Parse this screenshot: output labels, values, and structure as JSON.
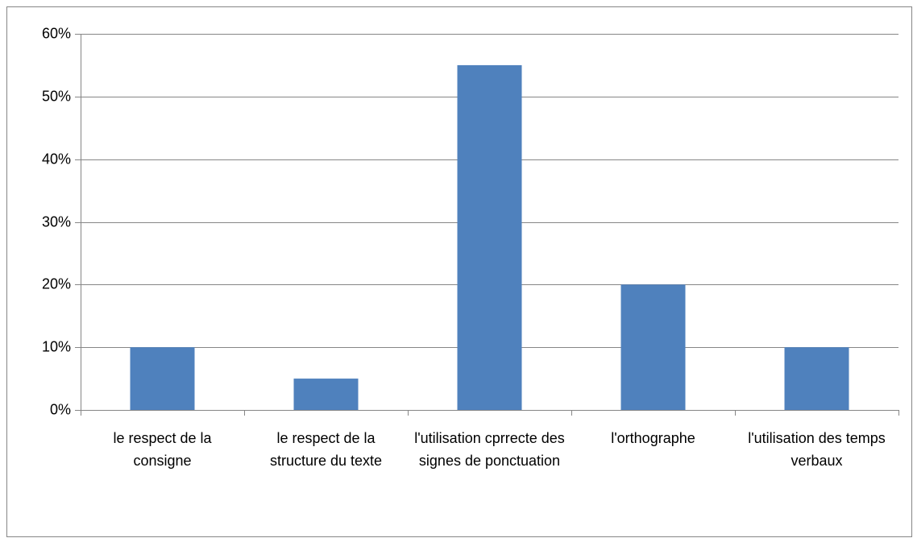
{
  "chart_data": {
    "type": "bar",
    "categories": [
      "le respect de la consigne",
      "le respect de la structure du texte",
      "l'utilisation cprrecte des signes de ponctuation",
      "l'orthographe",
      "l'utilisation des temps verbaux"
    ],
    "values": [
      10,
      5,
      55,
      20,
      10
    ],
    "color": "#4f81bd",
    "ylim": [
      0,
      60
    ],
    "yticks": [
      {
        "value": 0,
        "label": "0%"
      },
      {
        "value": 10,
        "label": "10%"
      },
      {
        "value": 20,
        "label": "20%"
      },
      {
        "value": 30,
        "label": "30%"
      },
      {
        "value": 40,
        "label": "40%"
      },
      {
        "value": 50,
        "label": "50%"
      },
      {
        "value": 60,
        "label": "60%"
      }
    ],
    "grid": true
  }
}
